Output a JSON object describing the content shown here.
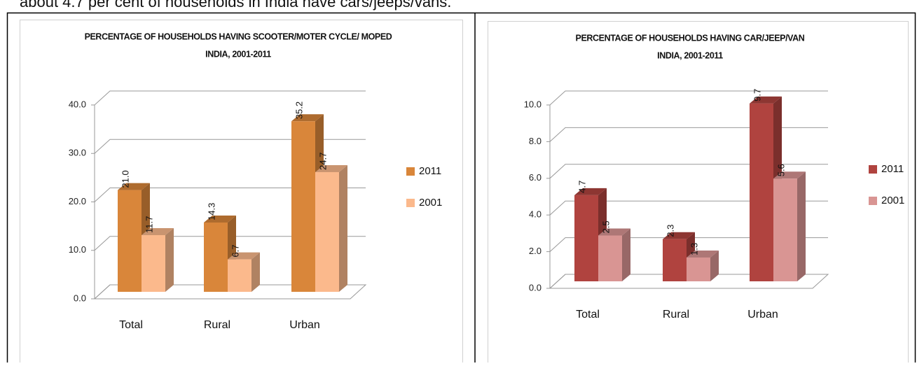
{
  "caption": "about 4.7 per cent of households in India have cars/jeeps/vans.",
  "chart_data": [
    {
      "type": "bar3d",
      "title": "PERCENTAGE OF HOUSEHOLDS HAVING SCOOTER/MOTER CYCLE/ MOPED",
      "subtitle": "INDIA, 2001-2011",
      "categories": [
        "Total",
        "Rural",
        "Urban"
      ],
      "series": [
        {
          "name": "2011",
          "color": "#d9863a",
          "values": [
            21.0,
            14.3,
            35.2
          ],
          "value_labels": [
            "21.0",
            "14.3",
            "35.2"
          ]
        },
        {
          "name": "2001",
          "color": "#fbb98c",
          "values": [
            11.7,
            6.7,
            24.7
          ]
        }
      ],
      "ylim": [
        0,
        40
      ],
      "yticks": [
        {
          "value": 0,
          "label": "0.0"
        },
        {
          "value": 10,
          "label": "10.0"
        },
        {
          "value": 20,
          "label": "20.0"
        },
        {
          "value": 30,
          "label": "30.0"
        },
        {
          "value": 40,
          "label": "40.0"
        }
      ],
      "grid": true,
      "legend": "right"
    },
    {
      "type": "bar3d",
      "title": "PERCENTAGE OF HOUSEHOLDS HAVING CAR/JEEP/VAN",
      "subtitle": "INDIA, 2001-2011",
      "categories": [
        "Total",
        "Rural",
        "Urban"
      ],
      "series": [
        {
          "name": "2011",
          "color": "#b0433f",
          "values": [
            4.7,
            2.3,
            9.7
          ]
        },
        {
          "name": "2001",
          "color": "#d99593",
          "values": [
            2.5,
            1.3,
            5.6
          ]
        }
      ],
      "ylim": [
        0,
        10
      ],
      "yticks": [
        {
          "value": 0,
          "label": "0.0"
        },
        {
          "value": 2,
          "label": "2.0"
        },
        {
          "value": 4,
          "label": "4.0"
        },
        {
          "value": 6,
          "label": "6.0"
        },
        {
          "value": 8,
          "label": "8.0"
        },
        {
          "value": 10,
          "label": "10.0"
        }
      ],
      "grid": true,
      "legend": "right"
    }
  ]
}
